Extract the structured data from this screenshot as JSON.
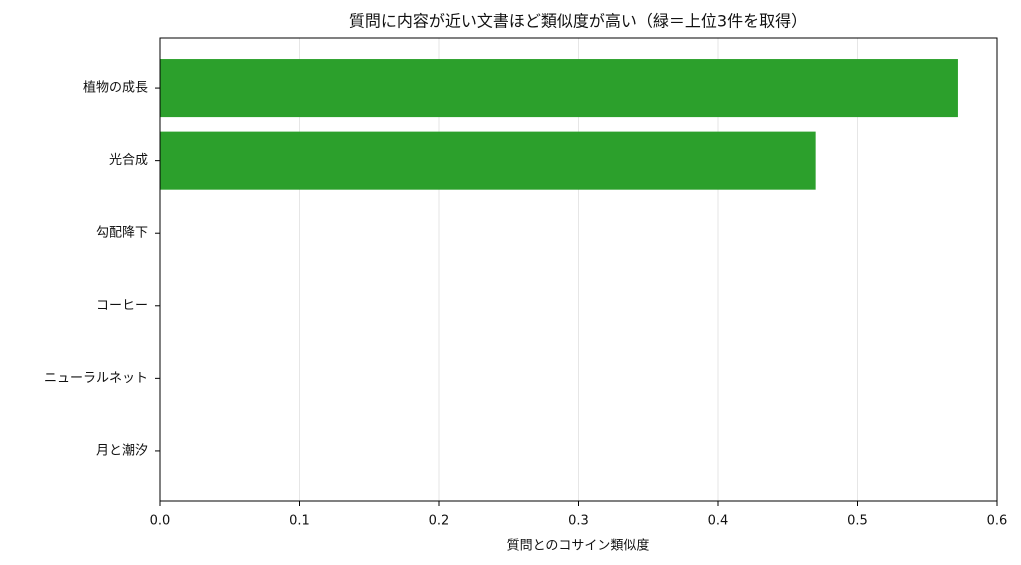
{
  "chart_data": {
    "type": "barh",
    "title": "質問に内容が近い文書ほど類似度が高い（緑＝上位3件を取得）",
    "x_label": "質問とのコサイン類似度",
    "categories": [
      "植物の成長",
      "光合成",
      "勾配降下",
      "コーヒー",
      "ニューラルネット",
      "月と潮汐"
    ],
    "values": [
      0.572,
      0.47,
      0,
      0,
      0,
      0
    ],
    "color": "#2ca02c",
    "xlim": [
      0,
      0.6
    ],
    "xticks": [
      {
        "value": 0,
        "label": "0.0"
      },
      0.1,
      0.2,
      0.3,
      0.4,
      0.5,
      0.6
    ],
    "grid": true
  }
}
